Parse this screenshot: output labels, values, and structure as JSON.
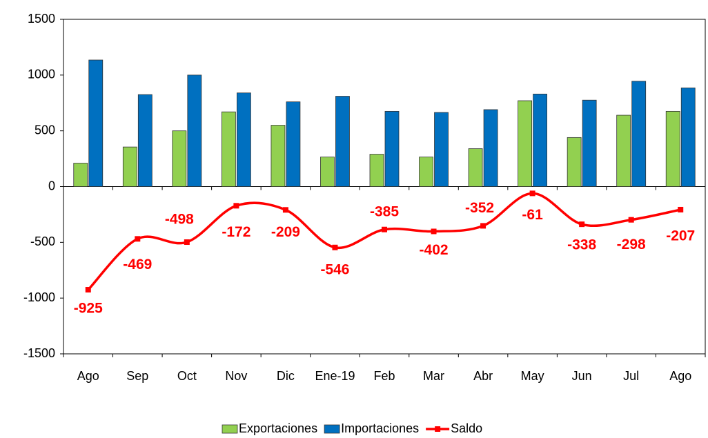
{
  "chart_data": {
    "type": "bar-line",
    "categories": [
      "Ago",
      "Sep",
      "Oct",
      "Nov",
      "Dic",
      "Ene-19",
      "Feb",
      "Mar",
      "Abr",
      "May",
      "Jun",
      "Jul",
      "Ago"
    ],
    "series": [
      {
        "name": "Exportaciones",
        "type": "bar",
        "color": "#92d050",
        "values": [
          210,
          355,
          500,
          670,
          550,
          265,
          290,
          265,
          340,
          770,
          440,
          640,
          675
        ]
      },
      {
        "name": "Importaciones",
        "type": "bar",
        "color": "#0070c0",
        "values": [
          1135,
          825,
          1000,
          840,
          760,
          810,
          675,
          665,
          690,
          830,
          775,
          945,
          885
        ]
      },
      {
        "name": "Saldo",
        "type": "line",
        "color": "#ff0000",
        "values": [
          -925,
          -469,
          -498,
          -172,
          -209,
          -546,
          -385,
          -402,
          -352,
          -61,
          -338,
          -298,
          -207
        ]
      }
    ],
    "ylim": [
      -1500,
      1500
    ],
    "yticks": [
      -1500,
      -1000,
      -500,
      0,
      500,
      1000,
      1500
    ],
    "legend": "bottom",
    "grid": false
  }
}
